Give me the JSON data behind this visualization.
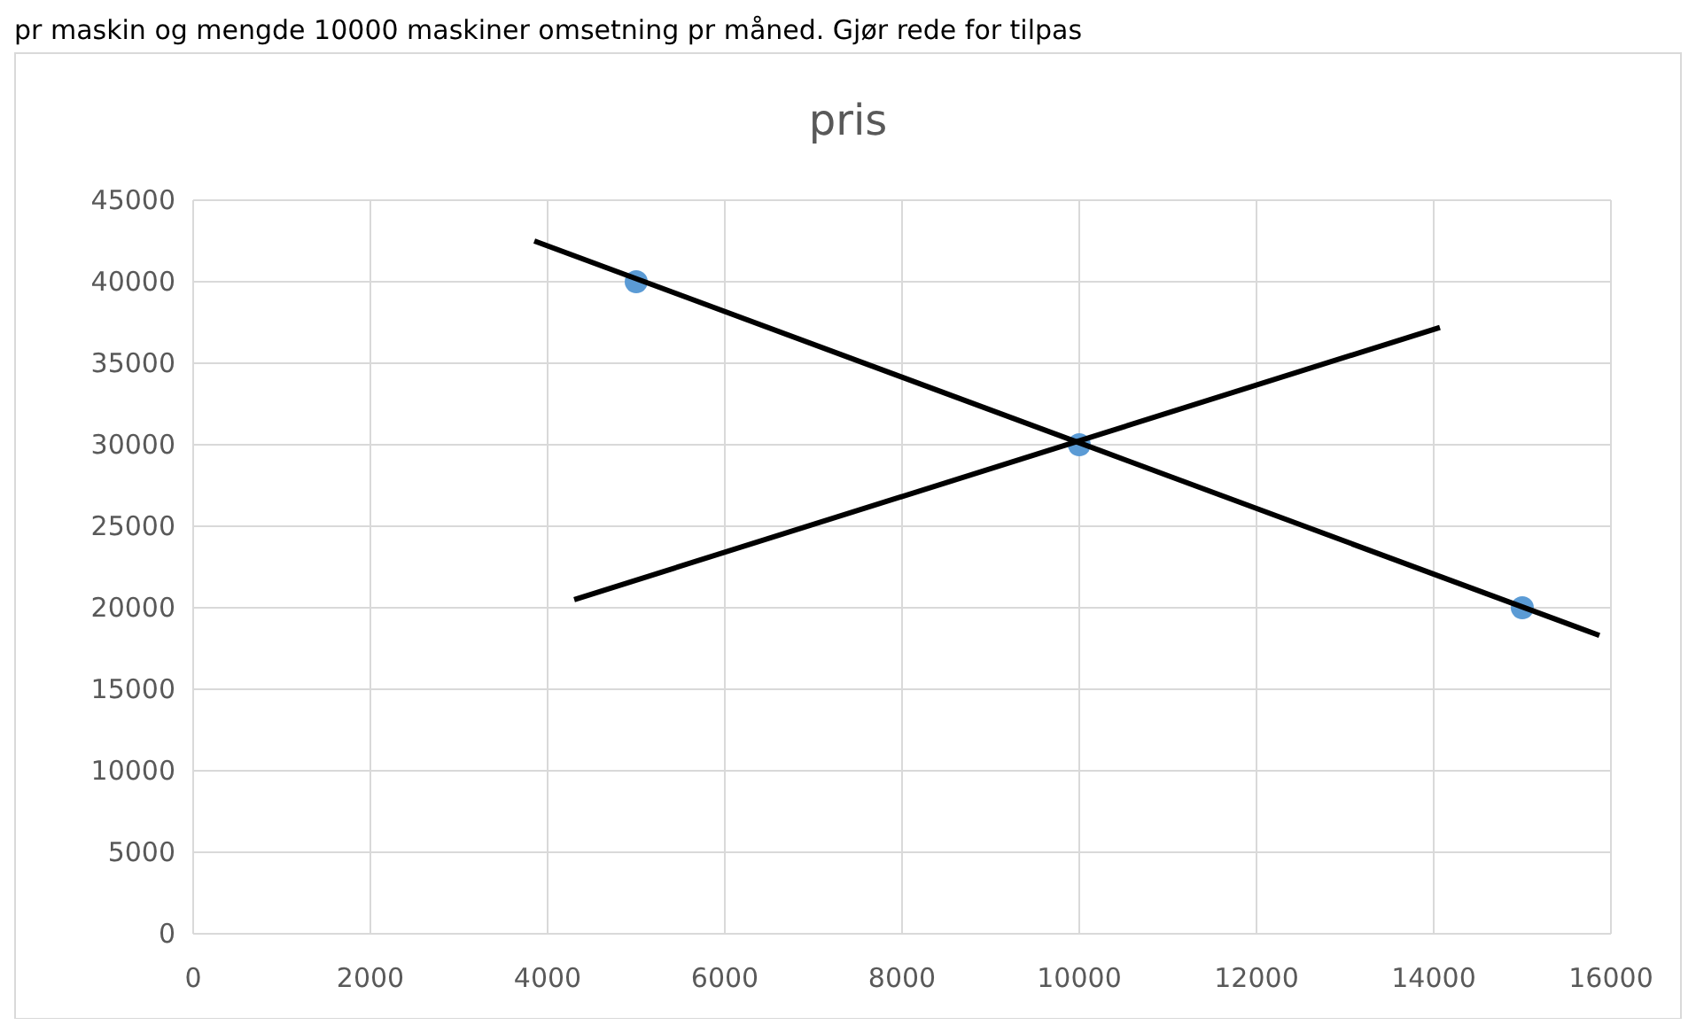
{
  "chart_data": {
    "type": "scatter",
    "title": "pris",
    "annotations": [
      "pr maskin og mengde 10000 maskiner omsetning pr måned. Gjør rede for tilpas"
    ],
    "xlim": [
      0,
      16000
    ],
    "xticks": [
      0,
      2000,
      4000,
      6000,
      8000,
      10000,
      12000,
      14000,
      16000
    ],
    "ylim": [
      0,
      45000
    ],
    "yticks": [
      0,
      5000,
      10000,
      15000,
      20000,
      25000,
      30000,
      35000,
      40000,
      45000
    ],
    "grid": true,
    "series": [
      {
        "color": "#5b9bd5",
        "marker": "circle",
        "x": [
          5000,
          10000,
          15000
        ],
        "values": [
          40000,
          30000,
          20000
        ]
      },
      {
        "type": "line",
        "color": "#000000",
        "marker": "none",
        "x": [
          3850,
          15870
        ],
        "values": [
          42500,
          18300
        ]
      },
      {
        "type": "line",
        "color": "#000000",
        "marker": "none",
        "x": [
          4300,
          14070
        ],
        "values": [
          20500,
          37200
        ]
      }
    ]
  }
}
